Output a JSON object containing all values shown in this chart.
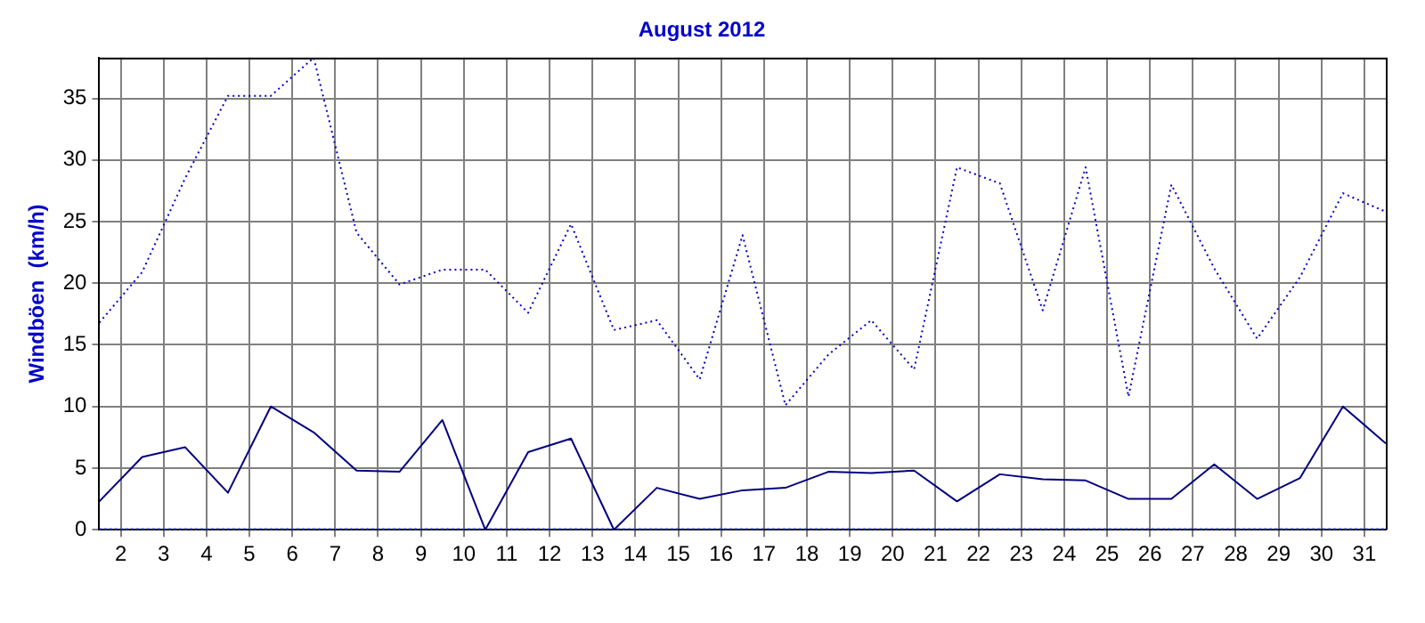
{
  "chart_data": {
    "type": "line",
    "title": "August 2012",
    "ylabel": "Windböen  (km/h)",
    "x": [
      1.5,
      2.5,
      3.5,
      4.5,
      5.5,
      6.5,
      7.5,
      8.5,
      9.5,
      10.5,
      11.5,
      12.5,
      13.5,
      14.5,
      15.5,
      16.5,
      17.5,
      18.5,
      19.5,
      20.5,
      21.5,
      22.5,
      23.5,
      24.5,
      25.5,
      26.5,
      27.5,
      28.5,
      29.5,
      30.5,
      31.5
    ],
    "series": [
      {
        "color": "#0000cc",
        "line_style": "dotted",
        "values": [
          16.8,
          20.9,
          28.5,
          35.2,
          35.2,
          38.3,
          24.1,
          19.9,
          21.1,
          21.1,
          17.6,
          24.8,
          16.2,
          17.0,
          12.2,
          23.9,
          10.1,
          14.2,
          17.0,
          13.0,
          29.4,
          28.1,
          17.8,
          29.4,
          10.8,
          28.0,
          21.2,
          15.5,
          20.5,
          27.3,
          25.8
        ]
      },
      {
        "color": "#000080",
        "line_style": "solid",
        "values": [
          2.3,
          5.9,
          6.7,
          3.0,
          10.0,
          7.9,
          4.8,
          4.7,
          8.9,
          0,
          6.3,
          7.4,
          0,
          3.4,
          2.5,
          3.2,
          3.4,
          4.7,
          4.6,
          4.8,
          2.3,
          4.5,
          4.1,
          4.0,
          2.5,
          2.5,
          5.3,
          2.5,
          4.2,
          10.0,
          7.0
        ]
      },
      {
        "color": "#3355ff",
        "line_style": "dotted",
        "values": [
          0,
          0,
          0,
          0,
          0,
          0,
          0,
          0,
          0,
          0,
          0,
          0,
          0,
          0,
          0,
          0,
          0,
          0,
          0,
          0,
          0,
          0,
          0,
          0,
          0,
          0,
          0,
          0,
          0,
          0,
          0
        ]
      }
    ],
    "xlim": [
      1.5,
      31.5
    ],
    "xticks": [
      2,
      3,
      4,
      5,
      6,
      7,
      8,
      9,
      10,
      11,
      12,
      13,
      14,
      15,
      16,
      17,
      18,
      19,
      20,
      21,
      22,
      23,
      24,
      25,
      26,
      27,
      28,
      29,
      30,
      31
    ],
    "ylim": [
      0,
      38.3
    ],
    "yticks": [
      0,
      5,
      10,
      15,
      20,
      25,
      30,
      35
    ],
    "grid": true,
    "legend": false,
    "marker": "none"
  }
}
